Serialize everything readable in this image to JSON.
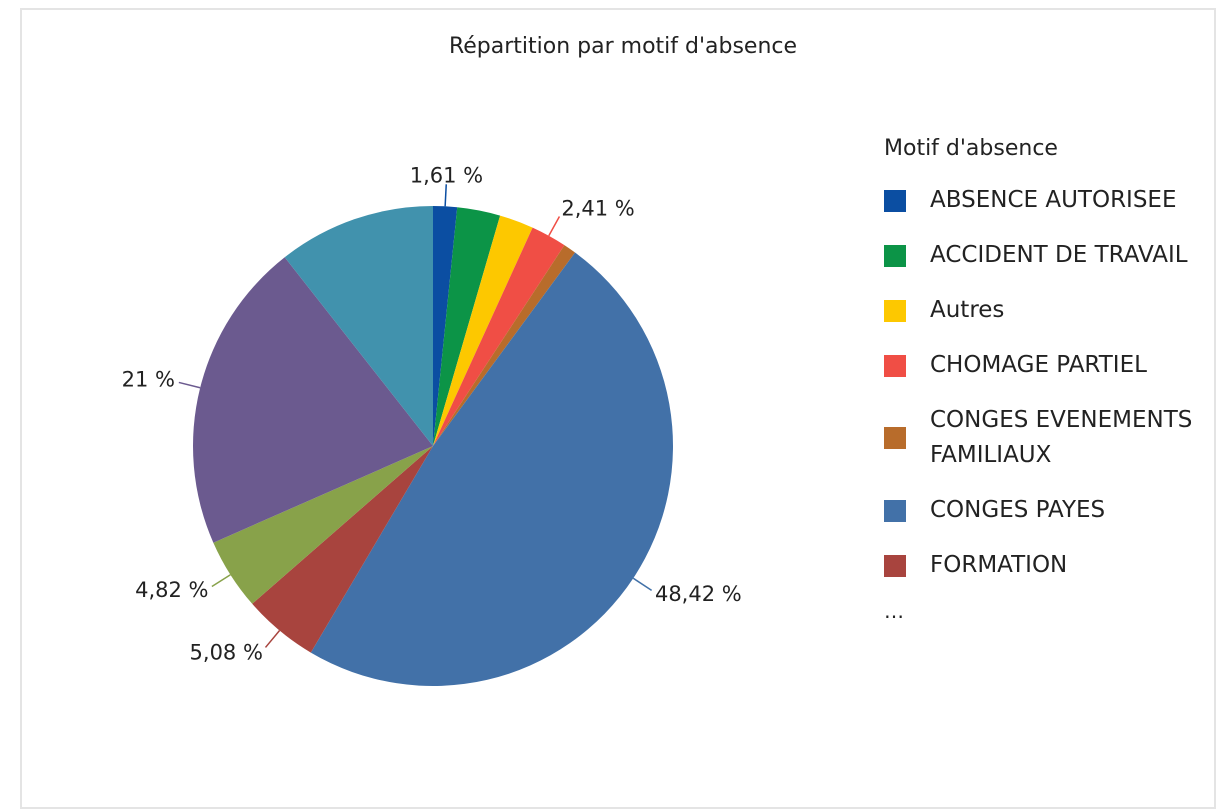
{
  "chart_data": {
    "type": "pie",
    "title": "Répartition par motif d'absence",
    "legend_title": "Motif d'absence",
    "legend_more": "…",
    "categories": [
      "ABSENCE AUTORISEE",
      "ACCIDENT DE TRAVAIL",
      "Autres",
      "CHOMAGE PARTIEL",
      "CONGES EVENEMENTS FAMILIAUX",
      "CONGES PAYES",
      "FORMATION",
      null,
      null,
      null
    ],
    "values": [
      1.61,
      2.9,
      2.3,
      2.41,
      0.86,
      48.42,
      5.08,
      4.82,
      21,
      10.6
    ],
    "value_labels": [
      "1,61 %",
      null,
      null,
      "2,41 %",
      null,
      "48,42 %",
      "5,08 %",
      "4,82 %",
      "21 %",
      null
    ],
    "colors": [
      "#0b4ea2",
      "#0c9447",
      "#fdc800",
      "#f04e45",
      "#b86c2b",
      "#4271a8",
      "#a8443e",
      "#88a24a",
      "#6b5a8f",
      "#4192ad"
    ]
  }
}
